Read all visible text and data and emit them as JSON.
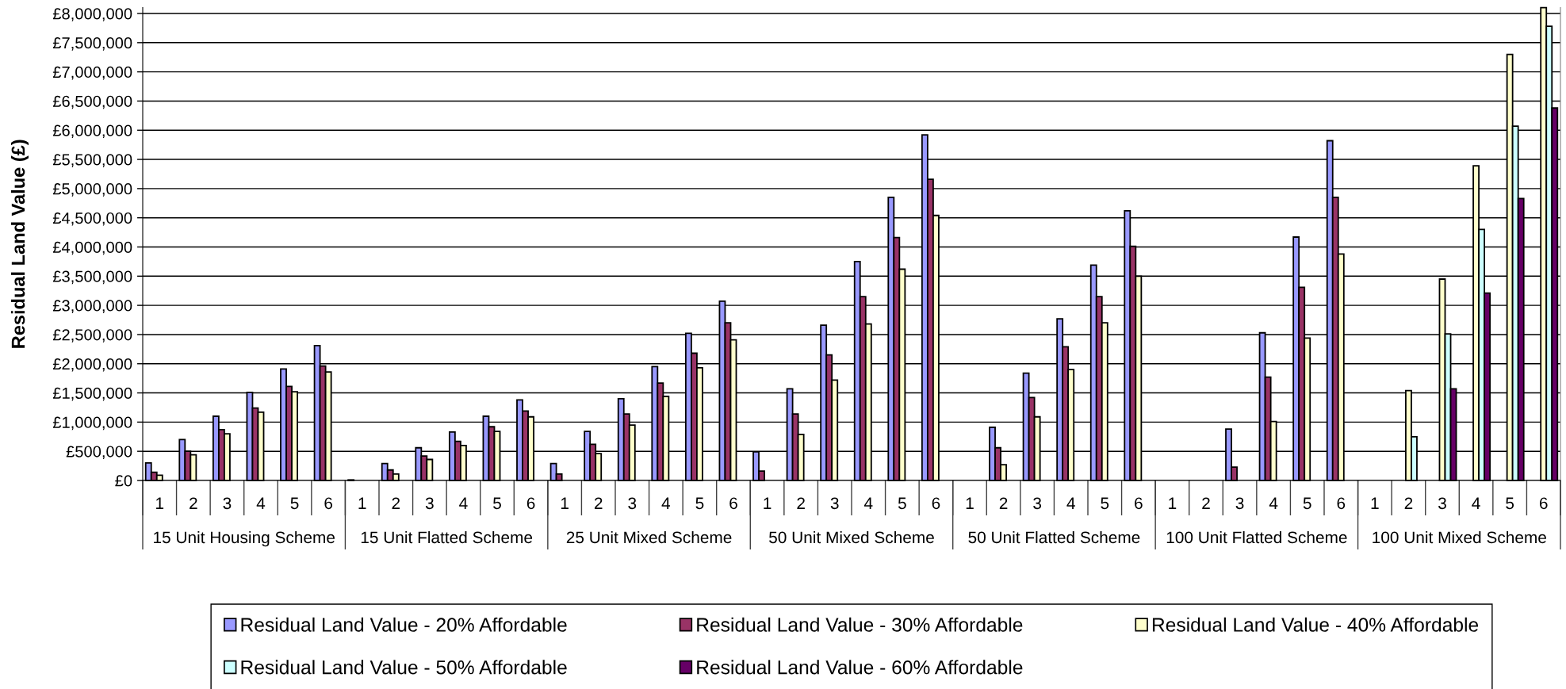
{
  "chart_data": {
    "type": "bar",
    "ylabel": "Residual Land Value (£)",
    "categories": [
      "1",
      "2",
      "3",
      "4",
      "5",
      "6",
      "1",
      "2",
      "3",
      "4",
      "5",
      "6",
      "1",
      "2",
      "3",
      "4",
      "5",
      "6",
      "1",
      "2",
      "3",
      "4",
      "5",
      "6",
      "1",
      "2",
      "3",
      "4",
      "5",
      "6",
      "1",
      "2",
      "3",
      "4",
      "5",
      "6",
      "1",
      "2",
      "3",
      "4",
      "5",
      "6"
    ],
    "annotations": [
      "15 Unit Housing Scheme",
      "15 Unit Flatted Scheme",
      "25 Unit Mixed Scheme",
      "50 Unit Mixed Scheme",
      "50 Unit Flatted Scheme",
      "100 Unit Flatted Scheme",
      "100 Unit Mixed Scheme"
    ],
    "series": [
      {
        "name": "Residual Land Value - 20% Affordable",
        "color": "#9999ff",
        "values": [
          300000,
          700000,
          1100000,
          1510000,
          1910000,
          2310000,
          10000,
          290000,
          560000,
          830000,
          1100000,
          1380000,
          290000,
          840000,
          1400000,
          1950000,
          2520000,
          3070000,
          490000,
          1570000,
          2660000,
          3750000,
          4850000,
          5920000,
          null,
          910000,
          1840000,
          2770000,
          3690000,
          4620000,
          null,
          null,
          880000,
          2530000,
          4170000,
          5820000,
          null,
          null,
          null,
          null,
          null,
          null
        ]
      },
      {
        "name": "Residual Land Value - 30% Affordable",
        "color": "#993366",
        "values": [
          140000,
          500000,
          870000,
          1240000,
          1610000,
          1960000,
          null,
          180000,
          420000,
          670000,
          920000,
          1190000,
          110000,
          620000,
          1140000,
          1670000,
          2180000,
          2700000,
          160000,
          1140000,
          2150000,
          3150000,
          4160000,
          5160000,
          null,
          560000,
          1420000,
          2290000,
          3150000,
          4010000,
          null,
          null,
          230000,
          1770000,
          3310000,
          4850000,
          null,
          null,
          null,
          null,
          null,
          null
        ]
      },
      {
        "name": "Residual Land Value - 40% Affordable",
        "color": "#ffffcc",
        "values": [
          90000,
          440000,
          800000,
          1170000,
          1520000,
          1860000,
          null,
          110000,
          360000,
          600000,
          840000,
          1090000,
          null,
          460000,
          950000,
          1440000,
          1930000,
          2410000,
          null,
          790000,
          1720000,
          2680000,
          3620000,
          4540000,
          null,
          270000,
          1090000,
          1900000,
          2700000,
          3500000,
          null,
          null,
          null,
          1010000,
          2440000,
          3880000,
          null,
          1540000,
          3450000,
          5390000,
          7300000,
          8100000
        ]
      },
      {
        "name": "Residual Land Value - 50% Affordable",
        "color": "#ccffff",
        "values": [
          null,
          null,
          null,
          null,
          null,
          null,
          null,
          null,
          null,
          null,
          null,
          null,
          null,
          null,
          null,
          null,
          null,
          null,
          null,
          null,
          null,
          null,
          null,
          null,
          null,
          null,
          null,
          null,
          null,
          null,
          null,
          null,
          null,
          null,
          null,
          null,
          null,
          750000,
          2510000,
          4300000,
          6070000,
          7780000
        ]
      },
      {
        "name": "Residual Land Value - 60% Affordable",
        "color": "#660066",
        "values": [
          null,
          null,
          null,
          null,
          null,
          null,
          null,
          null,
          null,
          null,
          null,
          null,
          null,
          null,
          null,
          null,
          null,
          null,
          null,
          null,
          null,
          null,
          null,
          null,
          null,
          null,
          null,
          null,
          null,
          null,
          null,
          null,
          null,
          null,
          null,
          null,
          null,
          null,
          1570000,
          3210000,
          4830000,
          6380000
        ]
      }
    ],
    "ylim": [
      0,
      8100000
    ],
    "yticks": [
      {
        "value": 0,
        "label": "£0"
      },
      {
        "value": 500000,
        "label": "£500,000"
      },
      {
        "value": 1000000,
        "label": "£1,000,000"
      },
      {
        "value": 1500000,
        "label": "£1,500,000"
      },
      {
        "value": 2000000,
        "label": "£2,000,000"
      },
      {
        "value": 2500000,
        "label": "£2,500,000"
      },
      {
        "value": 3000000,
        "label": "£3,000,000"
      },
      {
        "value": 3500000,
        "label": "£3,500,000"
      },
      {
        "value": 4000000,
        "label": "£4,000,000"
      },
      {
        "value": 4500000,
        "label": "£4,500,000"
      },
      {
        "value": 5000000,
        "label": "£5,000,000"
      },
      {
        "value": 5500000,
        "label": "£5,500,000"
      },
      {
        "value": 6000000,
        "label": "£6,000,000"
      },
      {
        "value": 6500000,
        "label": "£6,500,000"
      },
      {
        "value": 7000000,
        "label": "£7,000,000"
      },
      {
        "value": 7500000,
        "label": "£7,500,000"
      },
      {
        "value": 8000000,
        "label": "£8,000,000"
      }
    ],
    "grid": "y",
    "legend": "bottom"
  }
}
